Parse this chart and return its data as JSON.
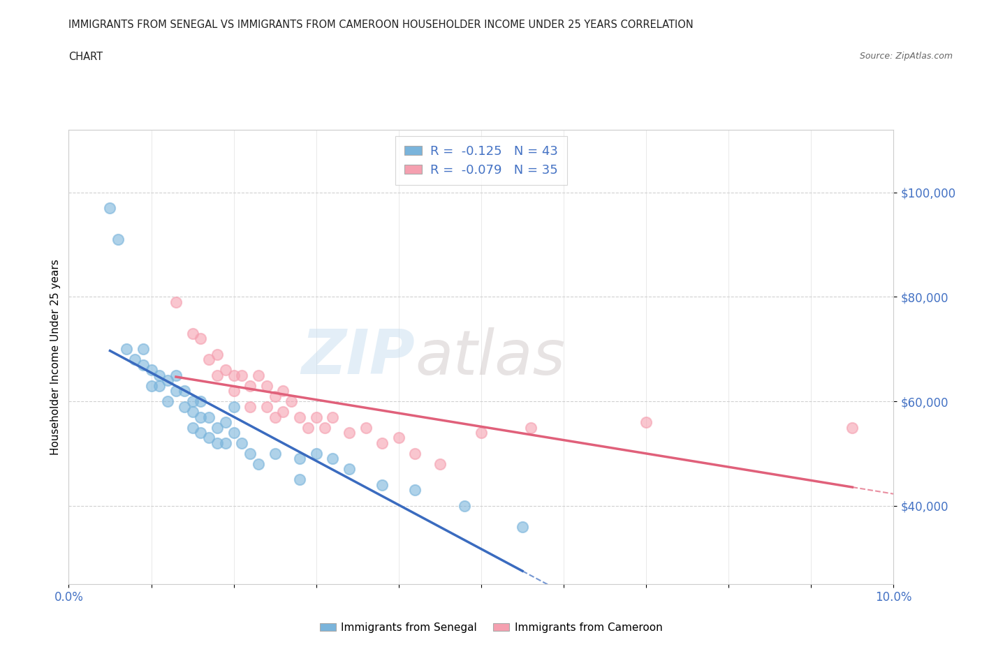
{
  "title_line1": "IMMIGRANTS FROM SENEGAL VS IMMIGRANTS FROM CAMEROON HOUSEHOLDER INCOME UNDER 25 YEARS CORRELATION",
  "title_line2": "CHART",
  "source": "Source: ZipAtlas.com",
  "ylabel": "Householder Income Under 25 years",
  "xlim": [
    0.0,
    0.1
  ],
  "ylim": [
    25000,
    112000
  ],
  "yticks": [
    40000,
    60000,
    80000,
    100000
  ],
  "ytick_labels": [
    "$40,000",
    "$60,000",
    "$80,000",
    "$100,000"
  ],
  "xticks": [
    0.0,
    0.01,
    0.02,
    0.03,
    0.04,
    0.05,
    0.06,
    0.07,
    0.08,
    0.09,
    0.1
  ],
  "xtick_labels": [
    "0.0%",
    "",
    "",
    "",
    "",
    "",
    "",
    "",
    "",
    "",
    "10.0%"
  ],
  "senegal_color": "#7ab4db",
  "cameroon_color": "#f5a0b0",
  "senegal_line_color": "#3a6bbf",
  "cameroon_line_color": "#e0607a",
  "senegal_R": -0.125,
  "senegal_N": 43,
  "cameroon_R": -0.079,
  "cameroon_N": 35,
  "watermark_zip": "ZIP",
  "watermark_atlas": "atlas",
  "legend_label_senegal": "Immigrants from Senegal",
  "legend_label_cameroon": "Immigrants from Cameroon",
  "senegal_x": [
    0.005,
    0.006,
    0.007,
    0.008,
    0.009,
    0.009,
    0.01,
    0.01,
    0.011,
    0.011,
    0.012,
    0.012,
    0.013,
    0.013,
    0.014,
    0.014,
    0.015,
    0.015,
    0.015,
    0.016,
    0.016,
    0.016,
    0.017,
    0.017,
    0.018,
    0.018,
    0.019,
    0.019,
    0.02,
    0.02,
    0.021,
    0.022,
    0.023,
    0.025,
    0.028,
    0.028,
    0.03,
    0.032,
    0.034,
    0.038,
    0.042,
    0.048,
    0.055
  ],
  "senegal_y": [
    97000,
    91000,
    70000,
    68000,
    70000,
    67000,
    66000,
    63000,
    65000,
    63000,
    64000,
    60000,
    65000,
    62000,
    62000,
    59000,
    60000,
    58000,
    55000,
    60000,
    57000,
    54000,
    57000,
    53000,
    55000,
    52000,
    56000,
    52000,
    59000,
    54000,
    52000,
    50000,
    48000,
    50000,
    49000,
    45000,
    50000,
    49000,
    47000,
    44000,
    43000,
    40000,
    36000
  ],
  "cameroon_x": [
    0.013,
    0.015,
    0.016,
    0.017,
    0.018,
    0.018,
    0.019,
    0.02,
    0.02,
    0.021,
    0.022,
    0.022,
    0.023,
    0.024,
    0.024,
    0.025,
    0.025,
    0.026,
    0.026,
    0.027,
    0.028,
    0.029,
    0.03,
    0.031,
    0.032,
    0.034,
    0.036,
    0.038,
    0.04,
    0.042,
    0.045,
    0.05,
    0.056,
    0.07,
    0.095
  ],
  "cameroon_y": [
    79000,
    73000,
    72000,
    68000,
    69000,
    65000,
    66000,
    65000,
    62000,
    65000,
    63000,
    59000,
    65000,
    63000,
    59000,
    61000,
    57000,
    62000,
    58000,
    60000,
    57000,
    55000,
    57000,
    55000,
    57000,
    54000,
    55000,
    52000,
    53000,
    50000,
    48000,
    54000,
    55000,
    56000,
    55000
  ]
}
